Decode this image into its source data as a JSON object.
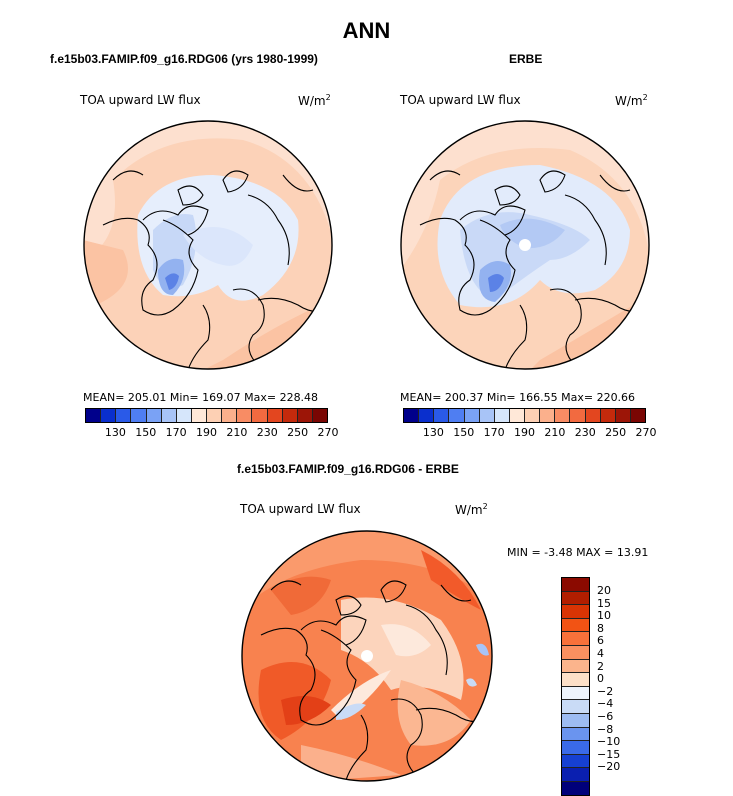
{
  "title": "ANN",
  "panels": [
    {
      "header": "f.e15b03.FAMIP.f09_g16.RDG06 (yrs 1980-1999)",
      "variable": "TOA upward LW flux",
      "units": "W/m",
      "units_exp": "2",
      "stats": "MEAN= 205.01  Min= 169.07  Max= 228.48"
    },
    {
      "header": "ERBE",
      "variable": "TOA upward LW flux",
      "units": "W/m",
      "units_exp": "2",
      "stats": "MEAN= 200.37  Min= 166.55  Max= 220.66"
    }
  ],
  "abs_colorbar": {
    "labels": [
      "130",
      "150",
      "170",
      "190",
      "210",
      "230",
      "250",
      "270"
    ],
    "colors": [
      "#00008b",
      "#0a2fcd",
      "#2a5ae8",
      "#4f7ef2",
      "#7aa2f5",
      "#a8c4f7",
      "#d6e6fb",
      "#ffe8d8",
      "#fdd0b4",
      "#fbb08c",
      "#f88c64",
      "#f26a40",
      "#e3461f",
      "#c42a0c",
      "#9c1507",
      "#7a0603"
    ]
  },
  "diff_panel": {
    "header": "f.e15b03.FAMIP.f09_g16.RDG06 - ERBE",
    "variable": "TOA upward LW flux",
    "units": "W/m",
    "units_exp": "2",
    "minmax": "MIN =  -3.48 MAX =  13.91"
  },
  "diff_colorbar": {
    "labels": [
      "20",
      "15",
      "10",
      "8",
      "6",
      "4",
      "2",
      "0",
      "−2",
      "−4",
      "−6",
      "−8",
      "−10",
      "−15",
      "−20"
    ],
    "colors": [
      "#8b0a00",
      "#b21e00",
      "#d93404",
      "#f25314",
      "#f8713a",
      "#fa9060",
      "#fbb48c",
      "#fde0c8",
      "#eef4fc",
      "#c9dbf6",
      "#9dbcf2",
      "#6a94ef",
      "#3a6ae8",
      "#1640d2",
      "#0a1fb0",
      "#00007a"
    ]
  }
}
